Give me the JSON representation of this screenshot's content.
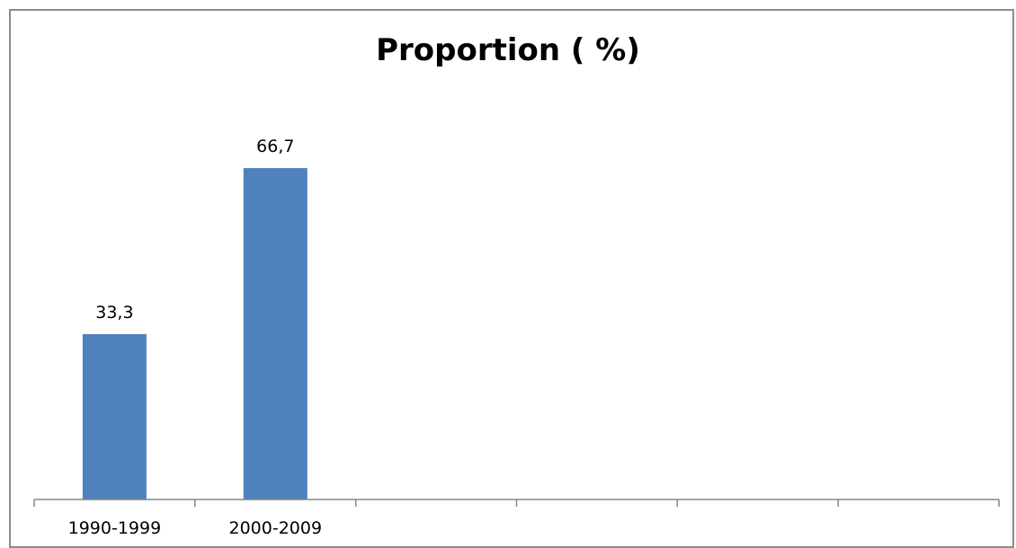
{
  "chart_data": {
    "type": "bar",
    "title": "Proportion ( %)",
    "categories": [
      "1990-1999",
      "2000-2009",
      "",
      "",
      "",
      ""
    ],
    "values": [
      33.3,
      66.7,
      null,
      null,
      null,
      null
    ],
    "data_labels": [
      "33,3",
      "66,7",
      "",
      "",
      "",
      ""
    ],
    "xlabel": "",
    "ylabel": "",
    "ylim": [
      0,
      100
    ],
    "grid": false,
    "legend": "none",
    "bar_color": "#4f81bd",
    "axis_color": "#868686"
  }
}
